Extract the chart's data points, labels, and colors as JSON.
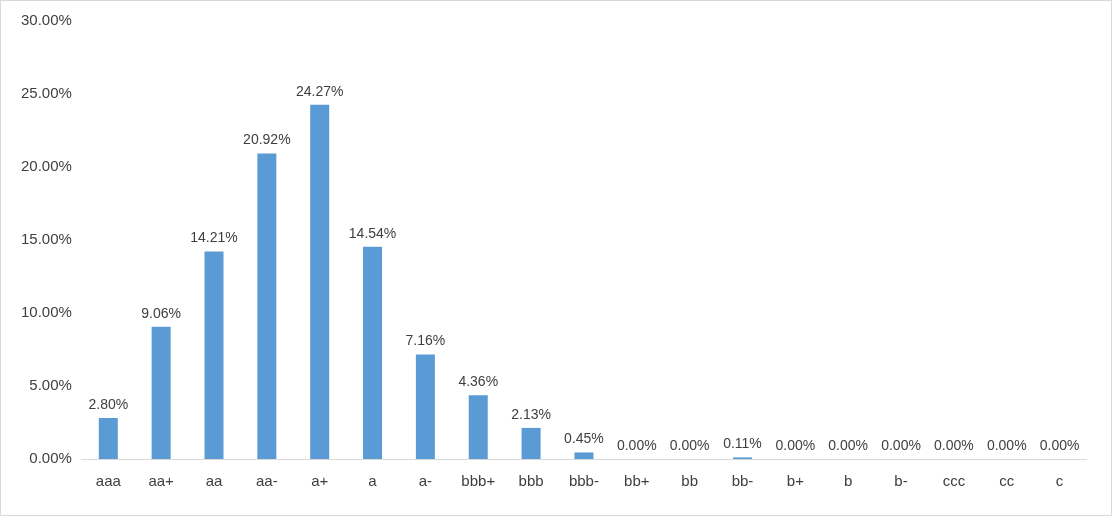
{
  "chart_data": {
    "type": "bar",
    "categories": [
      "aaa",
      "aa+",
      "aa",
      "aa-",
      "a+",
      "a",
      "a-",
      "bbb+",
      "bbb",
      "bbb-",
      "bb+",
      "bb",
      "bb-",
      "b+",
      "b",
      "b-",
      "ccc",
      "cc",
      "c"
    ],
    "values": [
      2.8,
      9.06,
      14.21,
      20.92,
      24.27,
      14.54,
      7.16,
      4.36,
      2.13,
      0.45,
      0,
      0,
      0.11,
      0,
      0,
      0,
      0,
      0,
      0
    ],
    "value_labels": [
      "2.80%",
      "9.06%",
      "14.21%",
      "20.92%",
      "24.27%",
      "14.54%",
      "7.16%",
      "4.36%",
      "2.13%",
      "0.45%",
      "0.00%",
      "0.00%",
      "0.11%",
      "0.00%",
      "0.00%",
      "0.00%",
      "0.00%",
      "0.00%",
      "0.00%"
    ],
    "color": "#5b9bd5",
    "ylim": [
      0,
      30
    ],
    "yticks": [
      {
        "value": 0,
        "label": "0.00%"
      },
      {
        "value": 5,
        "label": "5.00%"
      },
      {
        "value": 10,
        "label": "10.00%"
      },
      {
        "value": 15,
        "label": "15.00%"
      },
      {
        "value": 20,
        "label": "20.00%"
      },
      {
        "value": 25,
        "label": "25.00%"
      },
      {
        "value": 30,
        "label": "30.00%"
      }
    ],
    "grid": false,
    "legend": false
  }
}
